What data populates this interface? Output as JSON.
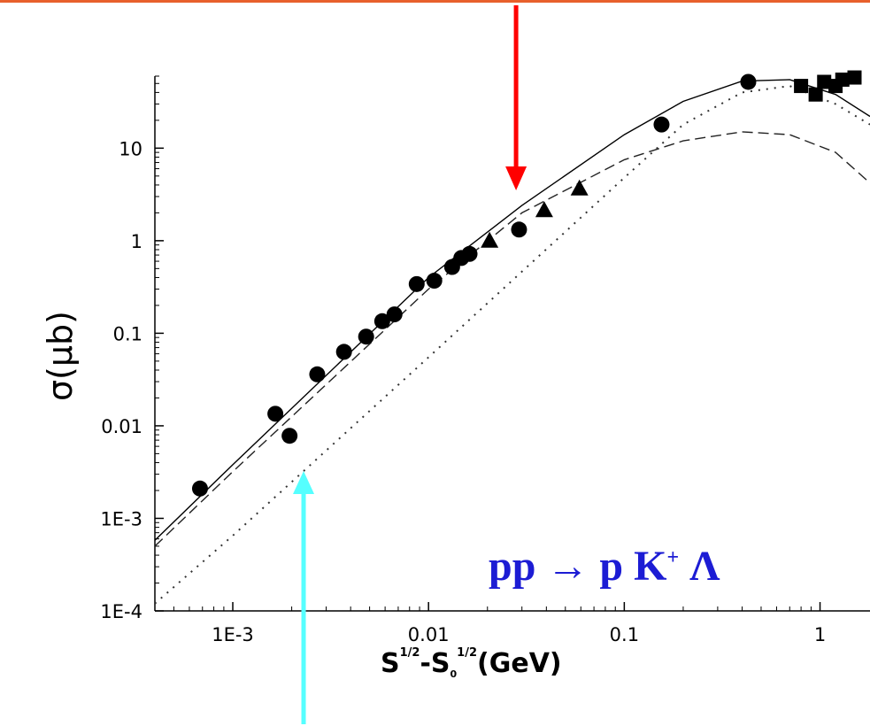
{
  "chart_data": {
    "type": "scatter",
    "title": "",
    "reaction_label": {
      "lhs": "pp",
      "arrow": "→",
      "rhs_p": "p",
      "rhs_k": "K",
      "rhs_k_sup": "+",
      "rhs_lambda": "Λ"
    },
    "xlabel": {
      "s": "S",
      "sup1": "1/2",
      "dash": "-S",
      "sub0": "0",
      "sup2": "1/2",
      "unit": "(GeV)"
    },
    "ylabel": "σ(μb)",
    "xscale": "log",
    "yscale": "log",
    "xlim": [
      0.0004,
      1.8
    ],
    "ylim": [
      0.0001,
      60
    ],
    "x_ticks": [
      {
        "value": 0.001,
        "label": "1E-3"
      },
      {
        "value": 0.01,
        "label": "0.01"
      },
      {
        "value": 0.1,
        "label": "0.1"
      },
      {
        "value": 1,
        "label": "1"
      }
    ],
    "y_ticks": [
      {
        "value": 0.0001,
        "label": "1E-4"
      },
      {
        "value": 0.001,
        "label": "1E-3"
      },
      {
        "value": 0.01,
        "label": "0.01"
      },
      {
        "value": 0.1,
        "label": "0.1"
      },
      {
        "value": 1,
        "label": "1"
      },
      {
        "value": 10,
        "label": "10"
      }
    ],
    "series": [
      {
        "marker": "circle",
        "points": [
          [
            0.00068,
            0.0021
          ],
          [
            0.00165,
            0.0135
          ],
          [
            0.00195,
            0.0078
          ],
          [
            0.0027,
            0.036
          ],
          [
            0.0037,
            0.063
          ],
          [
            0.0048,
            0.092
          ],
          [
            0.0058,
            0.135
          ],
          [
            0.0067,
            0.16
          ],
          [
            0.0087,
            0.34
          ],
          [
            0.0107,
            0.37
          ],
          [
            0.0132,
            0.52
          ],
          [
            0.0147,
            0.65
          ],
          [
            0.0162,
            0.72
          ],
          [
            0.029,
            1.32
          ],
          [
            0.155,
            18
          ],
          [
            0.43,
            52
          ]
        ]
      },
      {
        "marker": "triangle",
        "points": [
          [
            0.0205,
            0.98
          ],
          [
            0.039,
            2.1
          ],
          [
            0.059,
            3.6
          ]
        ]
      },
      {
        "marker": "square",
        "points": [
          [
            0.8,
            47
          ],
          [
            0.95,
            38
          ],
          [
            1.05,
            52
          ],
          [
            1.2,
            47
          ],
          [
            1.3,
            55
          ],
          [
            1.5,
            58
          ]
        ]
      },
      {
        "style": "solid",
        "points": [
          [
            0.0004,
            0.00058
          ],
          [
            0.001,
            0.0038
          ],
          [
            0.01,
            0.4
          ],
          [
            0.03,
            2.4
          ],
          [
            0.1,
            14
          ],
          [
            0.2,
            32
          ],
          [
            0.4,
            53
          ],
          [
            0.7,
            55
          ],
          [
            1.2,
            38
          ],
          [
            1.8,
            22
          ]
        ]
      },
      {
        "style": "dashed",
        "points": [
          [
            0.0004,
            0.0005
          ],
          [
            0.001,
            0.0032
          ],
          [
            0.01,
            0.3
          ],
          [
            0.03,
            2
          ],
          [
            0.1,
            7.5
          ],
          [
            0.2,
            12
          ],
          [
            0.4,
            15
          ],
          [
            0.7,
            14
          ],
          [
            1.2,
            9
          ],
          [
            1.8,
            4.2
          ]
        ]
      },
      {
        "style": "dotted",
        "points": [
          [
            0.0004,
            0.00012
          ],
          [
            0.001,
            0.00065
          ],
          [
            0.01,
            0.055
          ],
          [
            0.1,
            4.8
          ],
          [
            0.2,
            18
          ],
          [
            0.4,
            40
          ],
          [
            0.7,
            47
          ],
          [
            1.2,
            30
          ],
          [
            1.8,
            18
          ]
        ]
      }
    ],
    "arrows": [
      {
        "color": "#ff0000",
        "points_to_x": 0.028
      },
      {
        "color": "#55ffff",
        "points_to_x": 0.0023
      }
    ],
    "grid": false,
    "legend": "none"
  }
}
